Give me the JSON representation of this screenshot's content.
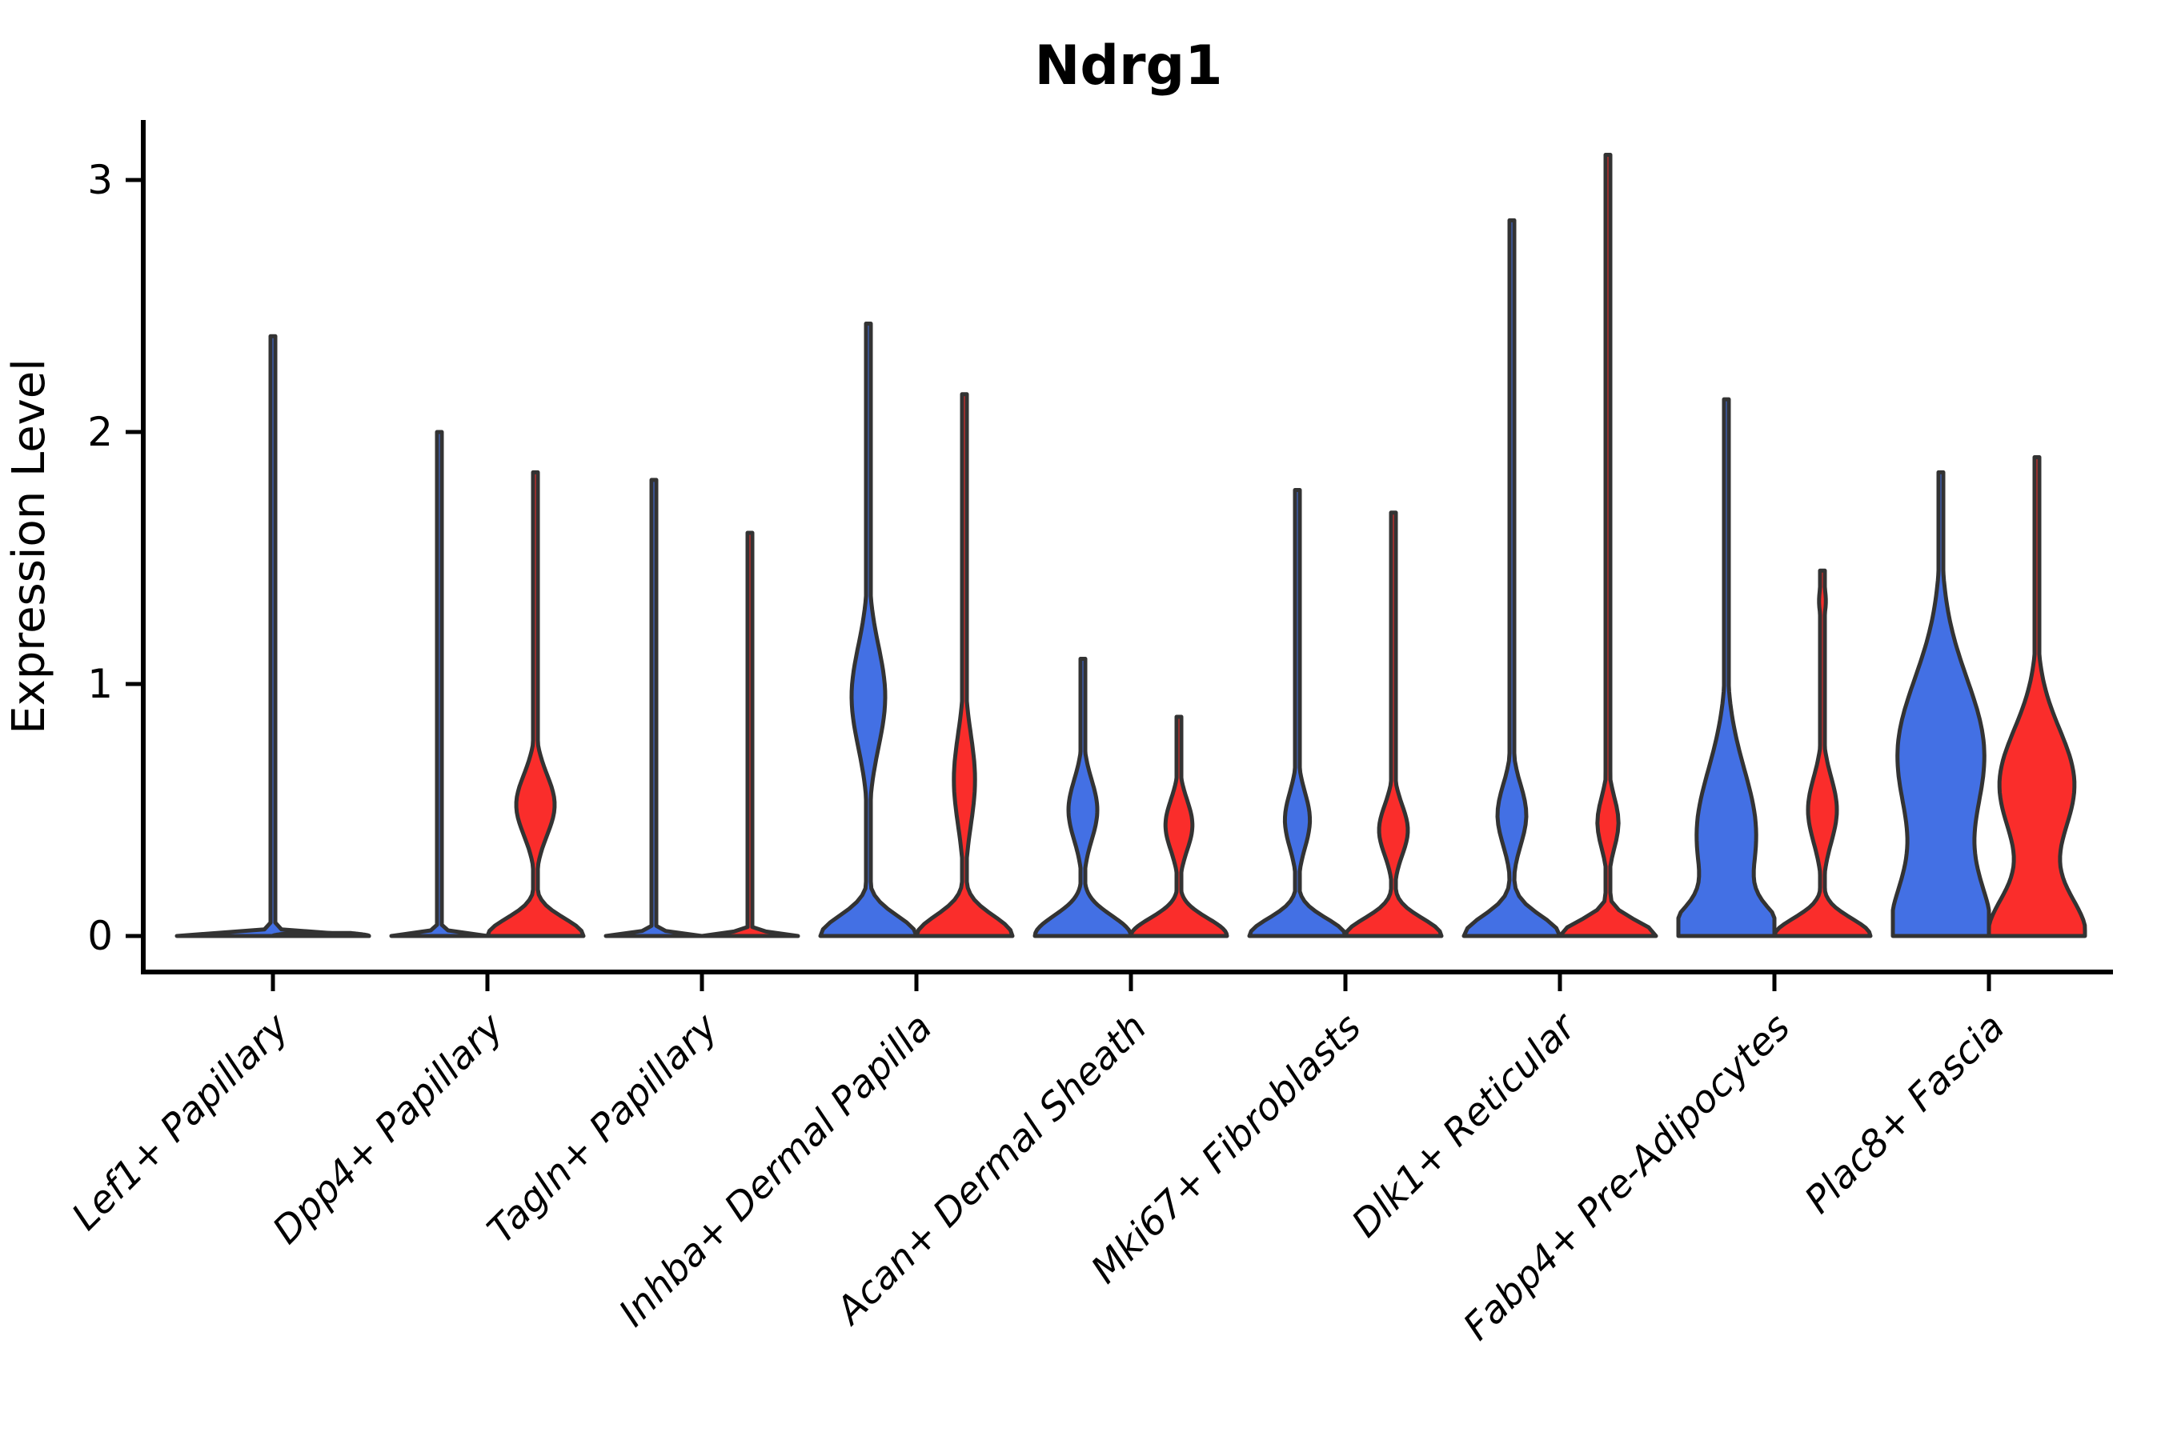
{
  "chart_data": {
    "type": "violin",
    "title": "Ndrg1",
    "ylabel": "Expression Level",
    "xlabel": "",
    "yticks": [
      0,
      1,
      2,
      3
    ],
    "ylim": [
      -0.14,
      3.24
    ],
    "grid": false,
    "legend": "none",
    "categories": [
      "Lef1+ Papillary",
      "Dpp4+ Papillary",
      "Tagln+ Papillary",
      "Inhba+ Dermal Papilla",
      "Acan+ Dermal Sheath",
      "Mki67+ Fibroblasts",
      "Dlk1+ Reticular",
      "Fabp4+ Pre-Adipocytes",
      "Plac8+ Fascia"
    ],
    "colors": {
      "series_blue": "#4370E4",
      "series_red": "#FA2D2B",
      "outline": "#333333",
      "axis": "#000000"
    },
    "series": [
      {
        "name": "blue",
        "color_key": "series_blue",
        "violins": [
          {
            "category": "Lef1+ Papillary",
            "max": 2.38,
            "components": [
              [
                0,
                0.012,
                1
              ]
            ],
            "offset": 0,
            "halfwidth": 120
          },
          {
            "category": "Dpp4+ Papillary",
            "max": 2.0,
            "components": [
              [
                0,
                0.012,
                1
              ]
            ]
          },
          {
            "category": "Tagln+ Papillary",
            "max": 1.81,
            "components": [
              [
                0,
                0.012,
                1
              ]
            ]
          },
          {
            "category": "Inhba+ Dermal Papilla",
            "max": 2.43,
            "components": [
              [
                0,
                0.08,
                1
              ],
              [
                0.95,
                0.2,
                0.35
              ]
            ]
          },
          {
            "category": "Acan+ Dermal Sheath",
            "max": 1.1,
            "components": [
              [
                0,
                0.08,
                1
              ],
              [
                0.5,
                0.12,
                0.3
              ]
            ]
          },
          {
            "category": "Mki67+ Fibroblasts",
            "max": 1.77,
            "components": [
              [
                0,
                0.07,
                1
              ],
              [
                0.46,
                0.11,
                0.26
              ]
            ]
          },
          {
            "category": "Dlk1+ Reticular",
            "max": 2.84,
            "components": [
              [
                0,
                0.08,
                1
              ],
              [
                0.48,
                0.12,
                0.3
              ]
            ]
          },
          {
            "category": "Fabp4+ Pre-Adipocytes",
            "max": 2.13,
            "components": [
              [
                0,
                0.1,
                1
              ],
              [
                0.4,
                0.26,
                0.62
              ]
            ]
          },
          {
            "category": "Plac8+ Fascia",
            "max": 1.84,
            "components": [
              [
                0,
                0.22,
                1
              ],
              [
                0.72,
                0.3,
                0.9
              ]
            ]
          }
        ]
      },
      {
        "name": "red",
        "color_key": "series_red",
        "violins": [
          {
            "category": "Lef1+ Papillary",
            "max": 0.0,
            "components": [
              [
                0,
                0.012,
                1
              ]
            ]
          },
          {
            "category": "Dpp4+ Papillary",
            "max": 1.84,
            "components": [
              [
                0,
                0.07,
                1
              ],
              [
                0.52,
                0.12,
                0.4
              ]
            ]
          },
          {
            "category": "Tagln+ Papillary",
            "max": 1.6,
            "components": [
              [
                0,
                0.012,
                1
              ]
            ]
          },
          {
            "category": "Inhba+ Dermal Papilla",
            "max": 2.15,
            "components": [
              [
                0,
                0.08,
                1
              ],
              [
                0.62,
                0.18,
                0.22
              ]
            ]
          },
          {
            "category": "Acan+ Dermal Sheath",
            "max": 0.87,
            "components": [
              [
                0,
                0.07,
                1
              ],
              [
                0.44,
                0.1,
                0.28
              ]
            ]
          },
          {
            "category": "Mki67+ Fibroblasts",
            "max": 1.68,
            "components": [
              [
                0,
                0.07,
                1
              ],
              [
                0.42,
                0.1,
                0.3
              ]
            ]
          },
          {
            "category": "Dlk1+ Reticular",
            "max": 3.1,
            "components": [
              [
                0,
                0.06,
                1
              ],
              [
                0.45,
                0.1,
                0.22
              ]
            ]
          },
          {
            "category": "Fabp4+ Pre-Adipocytes",
            "max": 1.45,
            "components": [
              [
                0,
                0.07,
                1
              ],
              [
                0.5,
                0.13,
                0.3
              ],
              [
                1.33,
                0.06,
                0.07
              ]
            ]
          },
          {
            "category": "Plac8+ Fascia",
            "max": 1.9,
            "components": [
              [
                0,
                0.16,
                1
              ],
              [
                0.6,
                0.22,
                0.78
              ]
            ]
          }
        ]
      }
    ]
  }
}
